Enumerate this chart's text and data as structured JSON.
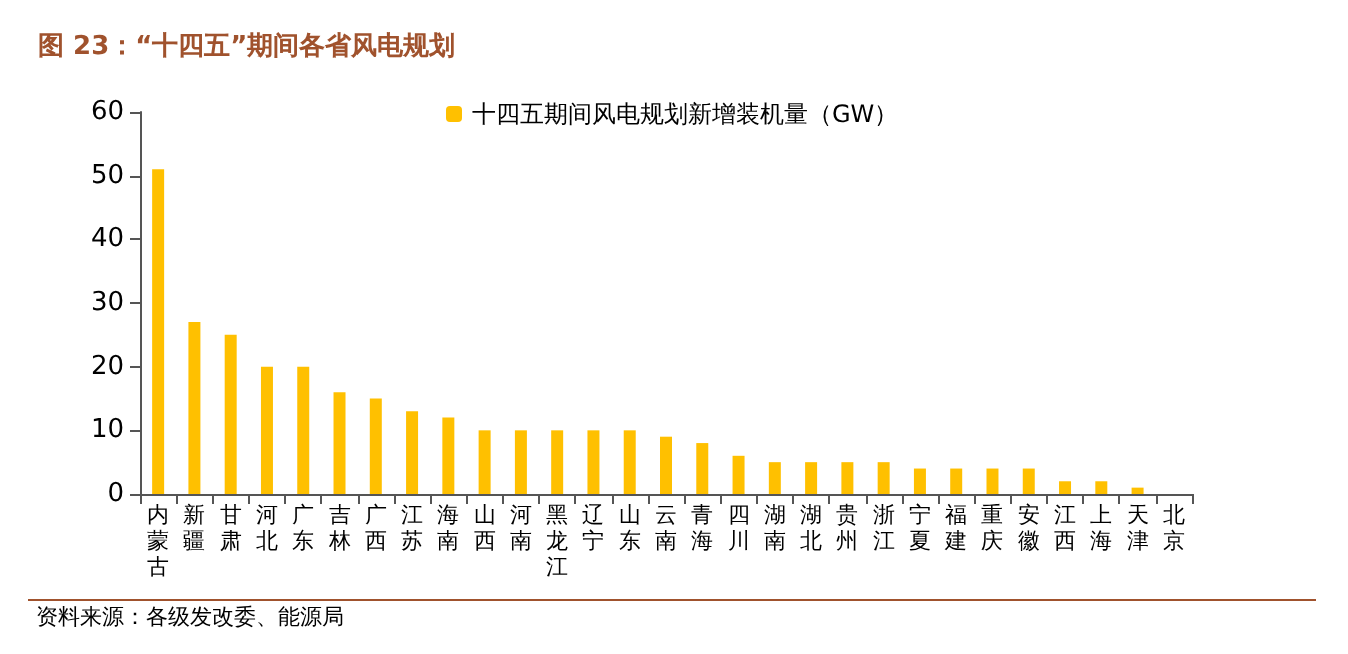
{
  "chart_data": {
    "type": "bar",
    "title": "图 23：“十四五”期间各省风电规划",
    "categories": [
      "内蒙古",
      "新疆",
      "甘肃",
      "河北",
      "广东",
      "吉林",
      "广西",
      "江苏",
      "海南",
      "山西",
      "河南",
      "黑龙江",
      "辽宁",
      "山东",
      "云南",
      "青海",
      "四川",
      "湖南",
      "湖北",
      "贵州",
      "浙江",
      "宁夏",
      "福建",
      "重庆",
      "安徽",
      "江西",
      "上海",
      "天津",
      "北京"
    ],
    "series": [
      {
        "name": "十四五期间风电规划新增装机量（GW）",
        "color": "#ffc000",
        "values": [
          51,
          27,
          25,
          20,
          20,
          16,
          15,
          13,
          12,
          10,
          10,
          10,
          10,
          10,
          9,
          8,
          6,
          5,
          5,
          5,
          5,
          4,
          4,
          4,
          4,
          2,
          2,
          1,
          0
        ]
      }
    ],
    "ylim": [
      0,
      60
    ],
    "yticks": [
      0,
      10,
      20,
      30,
      40,
      50,
      60
    ],
    "grid": false,
    "legend": "top",
    "annotations": [
      "资料来源：各级发改委、能源局"
    ]
  }
}
